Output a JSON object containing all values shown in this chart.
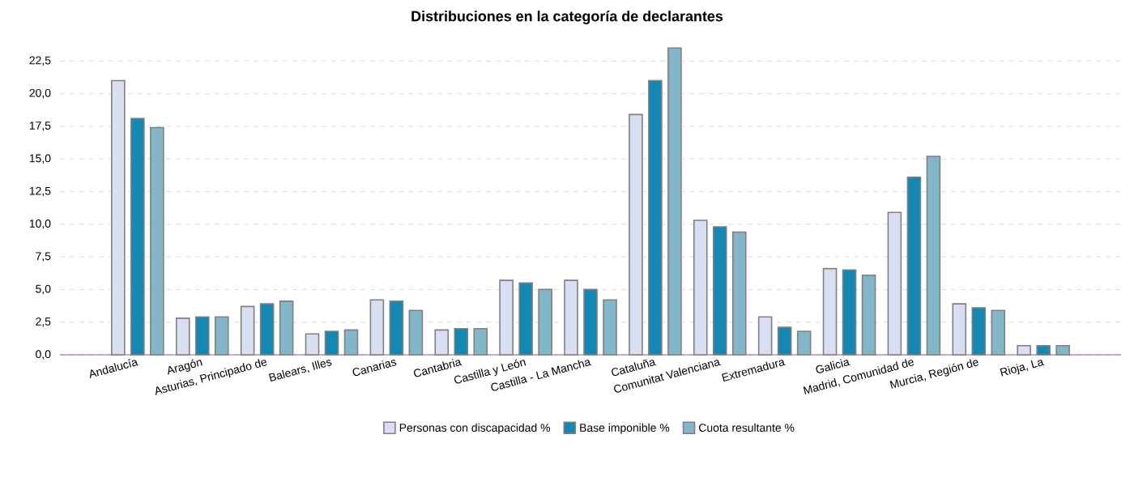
{
  "chart_data": {
    "type": "bar",
    "title": "Distribuciones en la categoría de declarantes",
    "categories": [
      "Andalucía",
      "Aragón",
      "Asturias, Principado de",
      "Balears, Illes",
      "Canarias",
      "Cantabria",
      "Castilla y León",
      "Castilla - La Mancha",
      "Cataluña",
      "Comunitat Valenciana",
      "Extremadura",
      "Galicia",
      "Madrid, Comunidad de",
      "Murcia, Región de",
      "Rioja, La"
    ],
    "series": [
      {
        "name": "Personas con discapacidad %",
        "color": "#d9dff0",
        "values": [
          21.0,
          2.8,
          3.7,
          1.6,
          4.2,
          1.9,
          5.7,
          5.7,
          18.4,
          10.3,
          2.9,
          6.6,
          10.9,
          3.9,
          0.7
        ]
      },
      {
        "name": "Base imponible %",
        "color": "#1288b3",
        "values": [
          18.1,
          2.9,
          3.9,
          1.8,
          4.1,
          2.0,
          5.5,
          5.0,
          21.0,
          9.8,
          2.1,
          6.5,
          13.6,
          3.6,
          0.7
        ]
      },
      {
        "name": "Cuota resultante %",
        "color": "#84b6c9",
        "values": [
          17.4,
          2.9,
          4.1,
          1.9,
          3.4,
          2.0,
          5.0,
          4.2,
          23.5,
          9.4,
          1.8,
          6.1,
          15.2,
          3.4,
          0.7
        ]
      }
    ],
    "ylim": [
      0,
      23.7
    ],
    "yticks": [
      {
        "value": 0,
        "label": "0,0"
      },
      {
        "value": 2.5,
        "label": "2,5"
      },
      {
        "value": 5,
        "label": "5,0"
      },
      {
        "value": 7.5,
        "label": "7,5"
      },
      {
        "value": 10,
        "label": "10,0"
      },
      {
        "value": 12.5,
        "label": "12,5"
      },
      {
        "value": 15,
        "label": "15,0"
      },
      {
        "value": 17.5,
        "label": "17,5"
      },
      {
        "value": 20,
        "label": "20,0"
      },
      {
        "value": 22.5,
        "label": "22,5"
      }
    ],
    "grid": "y",
    "legend": "bottom"
  }
}
